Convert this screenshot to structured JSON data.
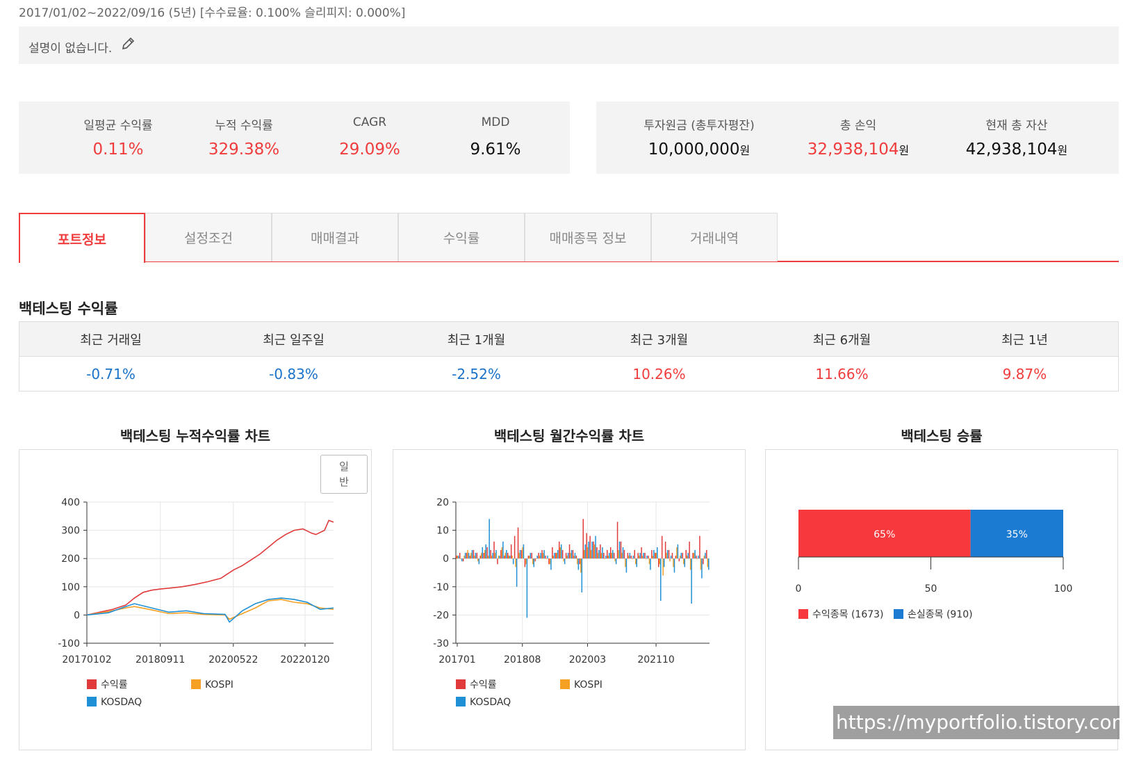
{
  "header": {
    "period": "2017/01/02~2022/09/16 (5년) [수수료율: 0.100% 슬리피지: 0.000%]",
    "description": "설명이 없습니다."
  },
  "kpis_left": [
    {
      "label": "일평균 수익률",
      "value": "0.11%",
      "color": "#f03c3c"
    },
    {
      "label": "누적 수익률",
      "value": "329.38%",
      "color": "#f03c3c"
    },
    {
      "label": "CAGR",
      "value": "29.09%",
      "color": "#f03c3c"
    },
    {
      "label": "MDD",
      "value": "9.61%",
      "color": "#111111"
    }
  ],
  "kpis_right": [
    {
      "label": "투자원금 (총투자평잔)",
      "value": "10,000,000",
      "unit": "원",
      "color": "#111111"
    },
    {
      "label": "총 손익",
      "value": "32,938,104",
      "unit": "원",
      "color": "#f03c3c"
    },
    {
      "label": "현재 총 자산",
      "value": "42,938,104",
      "unit": "원",
      "color": "#111111"
    }
  ],
  "tabs": [
    {
      "label": "포트정보",
      "active": true
    },
    {
      "label": "설정조건",
      "active": false
    },
    {
      "label": "매매결과",
      "active": false
    },
    {
      "label": "수익률",
      "active": false
    },
    {
      "label": "매매종목 정보",
      "active": false
    },
    {
      "label": "거래내역",
      "active": false
    }
  ],
  "returns_section": {
    "title": "백테스팅 수익률",
    "headers": [
      "최근 거래일",
      "최근 일주일",
      "최근 1개월",
      "최근 3개월",
      "최근 6개월",
      "최근 1년"
    ],
    "values": [
      "-0.71%",
      "-0.83%",
      "-2.52%",
      "10.26%",
      "11.66%",
      "9.87%"
    ],
    "value_colors": [
      "#1a73c9",
      "#1a73c9",
      "#1a73c9",
      "#f03c3c",
      "#f03c3c",
      "#f03c3c"
    ]
  },
  "colors": {
    "return": "#e03a3a",
    "kospi": "#f5a023",
    "kosdaq": "#1f8fd6",
    "win": "#f7383d",
    "loss": "#1b7bd3",
    "accent": "#f03c3c"
  },
  "charts": {
    "cumulative_title": "백테스팅 누적수익률 차트",
    "mode_button": "일\n반",
    "monthly_title": "백테스팅 월간수익률 차트",
    "winrate_title": "백테스팅 승률"
  },
  "chart_data": [
    {
      "type": "line",
      "title": "백테스팅 누적수익률 차트",
      "ylim": [
        -100,
        400
      ],
      "yticks": [
        "400",
        "300",
        "200",
        "100",
        "0",
        "-100"
      ],
      "xticks": [
        "20170102",
        "20180911",
        "20200522",
        "20220120"
      ],
      "xlim": [
        2017.0,
        2022.71
      ],
      "xtick_pos": [
        2017.0,
        2018.7,
        2020.39,
        2022.05
      ],
      "legend": [
        "수익률",
        "KOSPI",
        "KOSDAQ"
      ],
      "series": [
        {
          "name": "수익률",
          "x": [
            2017.0,
            2017.3,
            2017.6,
            2017.9,
            2018.1,
            2018.3,
            2018.5,
            2018.7,
            2018.9,
            2019.2,
            2019.5,
            2019.8,
            2020.1,
            2020.2,
            2020.4,
            2020.6,
            2020.8,
            2021.0,
            2021.2,
            2021.4,
            2021.6,
            2021.8,
            2022.0,
            2022.2,
            2022.3,
            2022.5,
            2022.6,
            2022.71
          ],
          "values": [
            0,
            10,
            20,
            35,
            60,
            80,
            88,
            92,
            95,
            100,
            108,
            118,
            130,
            140,
            160,
            175,
            195,
            215,
            240,
            265,
            285,
            300,
            305,
            290,
            285,
            300,
            335,
            329
          ]
        },
        {
          "name": "KOSPI",
          "x": [
            2017.0,
            2017.5,
            2017.9,
            2018.1,
            2018.5,
            2018.9,
            2019.3,
            2019.7,
            2020.2,
            2020.3,
            2020.6,
            2020.9,
            2021.2,
            2021.5,
            2021.8,
            2022.1,
            2022.4,
            2022.71
          ],
          "values": [
            0,
            12,
            25,
            30,
            18,
            5,
            8,
            2,
            0,
            -15,
            5,
            25,
            50,
            55,
            45,
            40,
            25,
            20
          ]
        },
        {
          "name": "KOSDAQ",
          "x": [
            2017.0,
            2017.5,
            2017.9,
            2018.1,
            2018.5,
            2018.9,
            2019.3,
            2019.7,
            2020.2,
            2020.3,
            2020.6,
            2020.9,
            2021.2,
            2021.5,
            2021.8,
            2022.1,
            2022.4,
            2022.71
          ],
          "values": [
            0,
            8,
            30,
            40,
            25,
            10,
            15,
            5,
            2,
            -25,
            15,
            40,
            55,
            60,
            55,
            45,
            20,
            25
          ]
        }
      ]
    },
    {
      "type": "bar",
      "title": "백테스팅 월간수익률 차트",
      "ylim": [
        -30,
        20
      ],
      "yticks": [
        "20",
        "10",
        "0",
        "-10",
        "-20",
        "-30"
      ],
      "xticks": [
        "201701",
        "201808",
        "202003",
        "202110"
      ],
      "legend": [
        "수익률",
        "KOSPI",
        "KOSDAQ"
      ],
      "series": [
        {
          "name": "수익률",
          "values": [
            1,
            2,
            -1,
            2,
            1,
            3,
            2,
            1,
            2,
            4,
            3,
            6,
            -2,
            3,
            1,
            2,
            5,
            8,
            11,
            3,
            -3,
            1,
            2,
            -1,
            2,
            3,
            1,
            -2,
            4,
            2,
            6,
            3,
            2,
            5,
            3,
            1,
            -2,
            14,
            9,
            8,
            6,
            4,
            5,
            2,
            3,
            4,
            2,
            13,
            6,
            3,
            2,
            1,
            3,
            2,
            4,
            2,
            1,
            3,
            2,
            -3,
            8,
            6,
            3,
            2,
            1,
            -1,
            2,
            3,
            6,
            2,
            1,
            8,
            -2,
            3
          ]
        },
        {
          "name": "KOSPI",
          "values": [
            1,
            0,
            1,
            3,
            2,
            1,
            -1,
            2,
            3,
            1,
            1,
            2,
            1,
            4,
            2,
            1,
            1,
            -3,
            2,
            4,
            -2,
            1,
            -2,
            0,
            1,
            2,
            0,
            -2,
            1,
            2,
            4,
            -1,
            1,
            2,
            1,
            -2,
            -5,
            3,
            4,
            3,
            5,
            2,
            2,
            0,
            1,
            2,
            -1,
            3,
            2,
            -3,
            1,
            0,
            -2,
            1,
            1,
            0,
            -2,
            1,
            2,
            -2,
            -6,
            2,
            -1,
            -3,
            4,
            1,
            -2,
            1,
            -4,
            2,
            0,
            -4,
            1,
            -3
          ]
        },
        {
          "name": "KOSDAQ",
          "values": [
            1,
            -1,
            2,
            2,
            3,
            2,
            -2,
            4,
            5,
            14,
            2,
            3,
            1,
            6,
            3,
            1,
            -2,
            -10,
            3,
            5,
            -21,
            2,
            -3,
            1,
            2,
            3,
            1,
            -4,
            2,
            3,
            5,
            -2,
            2,
            3,
            2,
            -4,
            -12,
            5,
            6,
            6,
            8,
            3,
            4,
            1,
            2,
            3,
            -2,
            6,
            4,
            -5,
            2,
            1,
            -3,
            2,
            2,
            1,
            -4,
            3,
            4,
            -15,
            -3,
            3,
            1,
            -5,
            5,
            2,
            -3,
            2,
            -16,
            3,
            1,
            -7,
            2,
            -4
          ]
        }
      ]
    },
    {
      "type": "bar",
      "title": "백테스팅 승률",
      "orientation": "horizontal-stacked",
      "xlim": [
        0,
        100
      ],
      "xticks": [
        "0",
        "50",
        "100"
      ],
      "values": [
        65,
        35
      ],
      "labels": [
        "65%",
        "35%"
      ],
      "legend": [
        "수익종목 (1673)",
        "손실종목 (910)"
      ]
    }
  ]
}
